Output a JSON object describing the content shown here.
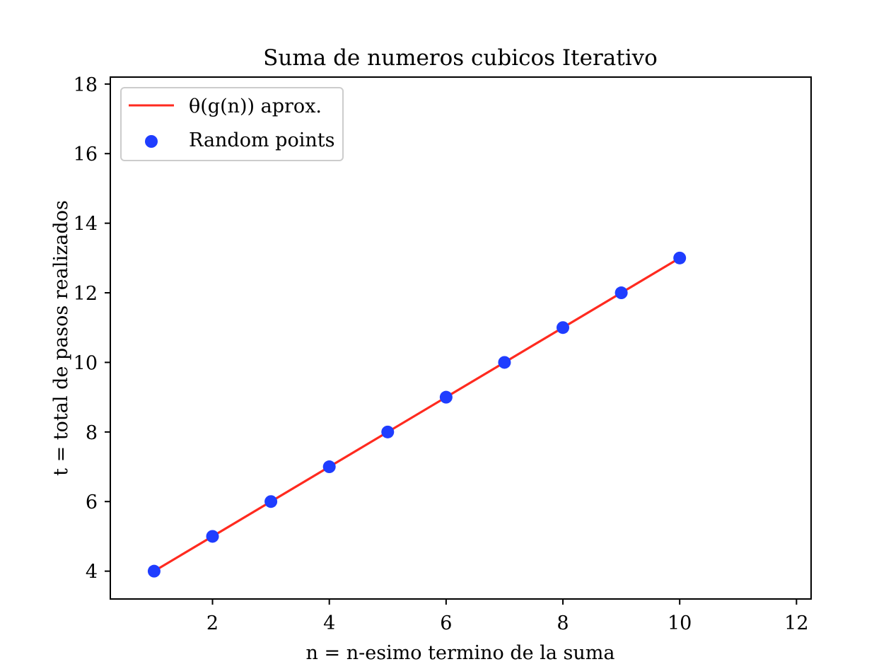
{
  "chart_data": {
    "type": "scatter",
    "title": "Suma de numeros cubicos Iterativo",
    "xlabel": "n = n-esimo termino de la suma",
    "ylabel": "t = total de pasos realizados",
    "xlim": [
      0.25,
      12.25
    ],
    "ylim": [
      3.2,
      18.2
    ],
    "x_ticks": [
      2,
      4,
      6,
      8,
      10,
      12
    ],
    "y_ticks": [
      4,
      6,
      8,
      10,
      12,
      14,
      16,
      18
    ],
    "grid": false,
    "legend_position": "top-left",
    "series": [
      {
        "name": "θ(g(n)) aprox.",
        "kind": "line",
        "color": "#ff2a1f",
        "x": [
          1,
          10
        ],
        "y": [
          4,
          13
        ]
      },
      {
        "name": "Random points",
        "kind": "scatter",
        "color": "#1f3dff",
        "x": [
          1,
          2,
          3,
          4,
          5,
          6,
          7,
          8,
          9,
          10
        ],
        "y": [
          4,
          5,
          6,
          7,
          8,
          9,
          10,
          11,
          12,
          13
        ]
      }
    ]
  }
}
